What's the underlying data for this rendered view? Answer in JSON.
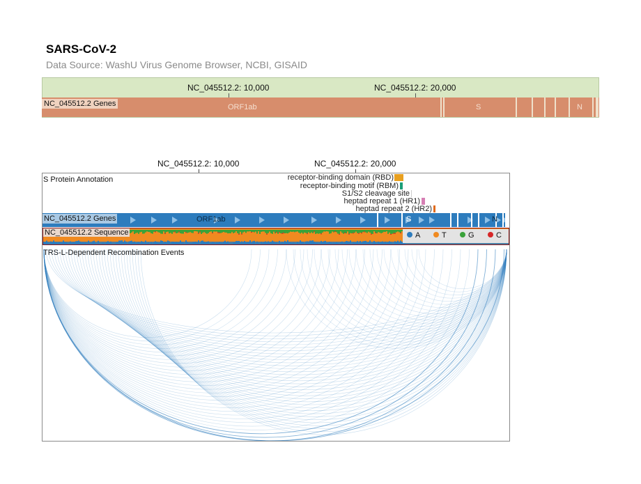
{
  "page": {
    "title": "SARS-CoV-2",
    "subtitle": "Data Source: WashU Virus Genome Browser, NCBI, GISAID"
  },
  "overview": {
    "ticks": [
      "NC_045512.2: 10,000",
      "NC_045512.2: 20,000"
    ],
    "genes_label": "NC_045512.2 Genes",
    "gene_names": [
      "ORF1ab",
      "S",
      "N"
    ],
    "colors": {
      "background": "#d9e8c4",
      "genes": "#d78d6c"
    }
  },
  "main": {
    "ticks": [
      "NC_045512.2: 10,000",
      "NC_045512.2: 20,000"
    ],
    "tracks": {
      "annotation": "S Protein Annotation",
      "genes": "NC_045512.2 Genes",
      "sequence": "NC_045512.2 Sequence",
      "recombination": "TRS-L-Dependent Recombination Events"
    },
    "gene_names": [
      "ORF1ab",
      "S",
      "N"
    ],
    "annotations": [
      {
        "label": "receptor-binding domain (RBD)",
        "color": "#e8a020"
      },
      {
        "label": "receptor-binding motif (RBM)",
        "color": "#1b9e77"
      },
      {
        "label": "S1/S2 cleavage site",
        "color": "#cccccc"
      },
      {
        "label": "heptad repeat 1 (HR1)",
        "color": "#d67fb4"
      },
      {
        "label": "heptad repeat 2 (HR2)",
        "color": "#e06a1a"
      }
    ],
    "sequence_legend": [
      {
        "base": "A",
        "color": "#2d7cbd"
      },
      {
        "base": "T",
        "color": "#f08a20"
      },
      {
        "base": "G",
        "color": "#3aa23a"
      },
      {
        "base": "C",
        "color": "#d62728"
      }
    ],
    "colors": {
      "genes": "#2d7cbd",
      "arcs": "#2d7cbd"
    }
  },
  "chart_data": {
    "type": "genome-browser",
    "genome": "NC_045512.2",
    "x_ticks": [
      10000,
      20000
    ],
    "genes": [
      "ORF1ab",
      "S",
      "N"
    ],
    "s_protein_annotations": [
      "receptor-binding domain (RBD)",
      "receptor-binding motif (RBM)",
      "S1/S2 cleavage site",
      "heptad repeat 1 (HR1)",
      "heptad repeat 2 (HR2)"
    ],
    "sequence_bases": [
      "A",
      "T",
      "G",
      "C"
    ]
  }
}
